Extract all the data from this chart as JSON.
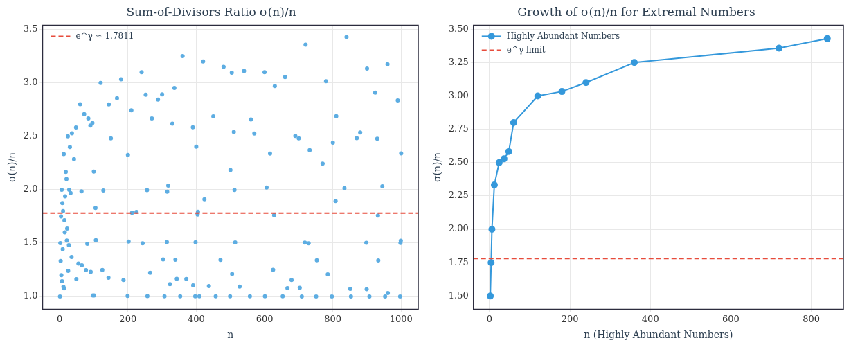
{
  "chart_data": [
    {
      "type": "scatter",
      "title": "Sum-of-Divisors Ratio σ(n)/n",
      "xlabel": "n",
      "ylabel": "σ(n)/n",
      "marker": "circle",
      "grid": true,
      "legend": "top left",
      "xlim": [
        -50,
        1050
      ],
      "xticks": [
        0,
        200,
        400,
        600,
        800,
        1000
      ],
      "ylim": [
        0.88,
        3.54
      ],
      "yticks": [
        {
          "value": 1,
          "label": "1.0"
        },
        {
          "value": 1.5,
          "label": "1.5"
        },
        {
          "value": 2,
          "label": "2.0"
        },
        {
          "value": 2.5,
          "label": "2.5"
        },
        {
          "value": 3,
          "label": "3.0"
        },
        {
          "value": 3.5,
          "label": "3.5"
        }
      ],
      "ref_lines": [
        {
          "axis": "y",
          "value": 1.7811,
          "label": "e^γ ≈ 1.7811",
          "color": "#e74c3c",
          "line_style": "dashed"
        }
      ],
      "series": [
        {
          "color": "#5dade2",
          "x": [
            1,
            2,
            3,
            4,
            5,
            6,
            7,
            8,
            9,
            10,
            11,
            12,
            13,
            14,
            15,
            16,
            18,
            20,
            21,
            22,
            24,
            25,
            27,
            28,
            30,
            32,
            35,
            36,
            42,
            48,
            49,
            55,
            60,
            64,
            65,
            72,
            77,
            81,
            84,
            90,
            91,
            96,
            97,
            100,
            101,
            105,
            106,
            120,
            125,
            128,
            143,
            144,
            150,
            168,
            180,
            187,
            199,
            200,
            202,
            210,
            212,
            225,
            240,
            243,
            252,
            256,
            257,
            265,
            270,
            288,
            300,
            303,
            307,
            314,
            315,
            318,
            323,
            330,
            336,
            339,
            343,
            353,
            360,
            371,
            390,
            391,
            397,
            398,
            400,
            404,
            405,
            409,
            420,
            424,
            437,
            450,
            457,
            471,
            480,
            499,
            500,
            504,
            505,
            510,
            512,
            514,
            527,
            540,
            557,
            560,
            570,
            600,
            601,
            606,
            616,
            625,
            628,
            630,
            653,
            660,
            667,
            679,
            690,
            700,
            703,
            709,
            718,
            720,
            729,
            732,
            751,
            753,
            770,
            780,
            785,
            797,
            800,
            808,
            810,
            834,
            840,
            851,
            853,
            870,
            880,
            898,
            899,
            900,
            907,
            924,
            930,
            932,
            933,
            945,
            953,
            960,
            961,
            990,
            997,
            998,
            999,
            1000
          ],
          "values": [
            1,
            1.5,
            1.333,
            1.75,
            1.2,
            2,
            1.143,
            1.875,
            1.444,
            1.8,
            1.091,
            2.333,
            1.077,
            1.714,
            1.6,
            1.938,
            2.167,
            2.1,
            1.524,
            1.636,
            2.5,
            1.24,
            1.481,
            2,
            2.4,
            1.969,
            1.371,
            2.528,
            2.286,
            2.583,
            1.163,
            1.309,
            2.8,
            1.984,
            1.292,
            2.708,
            1.247,
            1.494,
            2.667,
            2.6,
            1.231,
            2.625,
            1.01,
            2.17,
            1.01,
            1.829,
            1.528,
            3,
            1.248,
            1.992,
            1.175,
            2.799,
            2.48,
            2.857,
            3.033,
            1.155,
            1.005,
            2.325,
            1.515,
            2.743,
            1.783,
            1.791,
            3.1,
            1.498,
            2.889,
            1.996,
            1.004,
            1.223,
            2.667,
            2.844,
            2.893,
            1.347,
            1.003,
            1.51,
            1.981,
            2.038,
            1.115,
            2.618,
            2.952,
            1.345,
            1.166,
            1.003,
            3.25,
            1.164,
            2.585,
            1.105,
            1.003,
            1.508,
            2.403,
            1.767,
            1.793,
            1.002,
            3.2,
            1.91,
            1.098,
            2.687,
            1.002,
            1.342,
            3.15,
            1.002,
            2.184,
            3.095,
            1.212,
            2.541,
            1.998,
            1.506,
            1.093,
            3.111,
            1.002,
            2.657,
            2.526,
            3.1,
            1.002,
            2.02,
            2.338,
            1.25,
            1.761,
            2.971,
            1.002,
            3.055,
            1.079,
            1.155,
            2.504,
            2.48,
            1.081,
            1.001,
            1.504,
            3.358,
            1.499,
            2.371,
            1.001,
            1.339,
            2.244,
            3.015,
            1.208,
            1.001,
            2.441,
            1.894,
            2.689,
            2.014,
            3.429,
            1.072,
            1.001,
            2.483,
            2.536,
            1.503,
            1.068,
            3.134,
            1.001,
            2.909,
            2.477,
            1.758,
            1.338,
            2.032,
            1.001,
            3.175,
            1.033,
            2.836,
            1.001,
            1.502,
            1.522,
            2.34
          ]
        }
      ]
    },
    {
      "type": "line",
      "title": "Growth of σ(n)/n for Extremal Numbers",
      "xlabel": "n (Highly Abundant Numbers)",
      "ylabel": "σ(n)/n",
      "marker": "circle",
      "line_style": "solid",
      "grid": true,
      "legend": "top left",
      "xlim": [
        -40,
        880
      ],
      "xticks": [
        0,
        200,
        400,
        600,
        800
      ],
      "ylim": [
        1.4,
        3.53
      ],
      "yticks": [
        {
          "value": 1.5,
          "label": "1.50"
        },
        {
          "value": 1.75,
          "label": "1.75"
        },
        {
          "value": 2,
          "label": "2.00"
        },
        {
          "value": 2.25,
          "label": "2.25"
        },
        {
          "value": 2.5,
          "label": "2.50"
        },
        {
          "value": 2.75,
          "label": "2.75"
        },
        {
          "value": 3,
          "label": "3.00"
        },
        {
          "value": 3.25,
          "label": "3.25"
        },
        {
          "value": 3.5,
          "label": "3.50"
        }
      ],
      "ref_lines": [
        {
          "axis": "y",
          "value": 1.7811,
          "label": "e^γ limit",
          "color": "#e74c3c",
          "line_style": "dashed"
        }
      ],
      "series": [
        {
          "name": "Highly Abundant Numbers",
          "color": "#3498db",
          "x": [
            2,
            4,
            6,
            12,
            24,
            36,
            48,
            60,
            120,
            180,
            240,
            360,
            720,
            840
          ],
          "values": [
            1.5,
            1.75,
            2,
            2.333,
            2.5,
            2.528,
            2.583,
            2.8,
            3,
            3.033,
            3.1,
            3.25,
            3.358,
            3.429
          ]
        }
      ]
    }
  ]
}
